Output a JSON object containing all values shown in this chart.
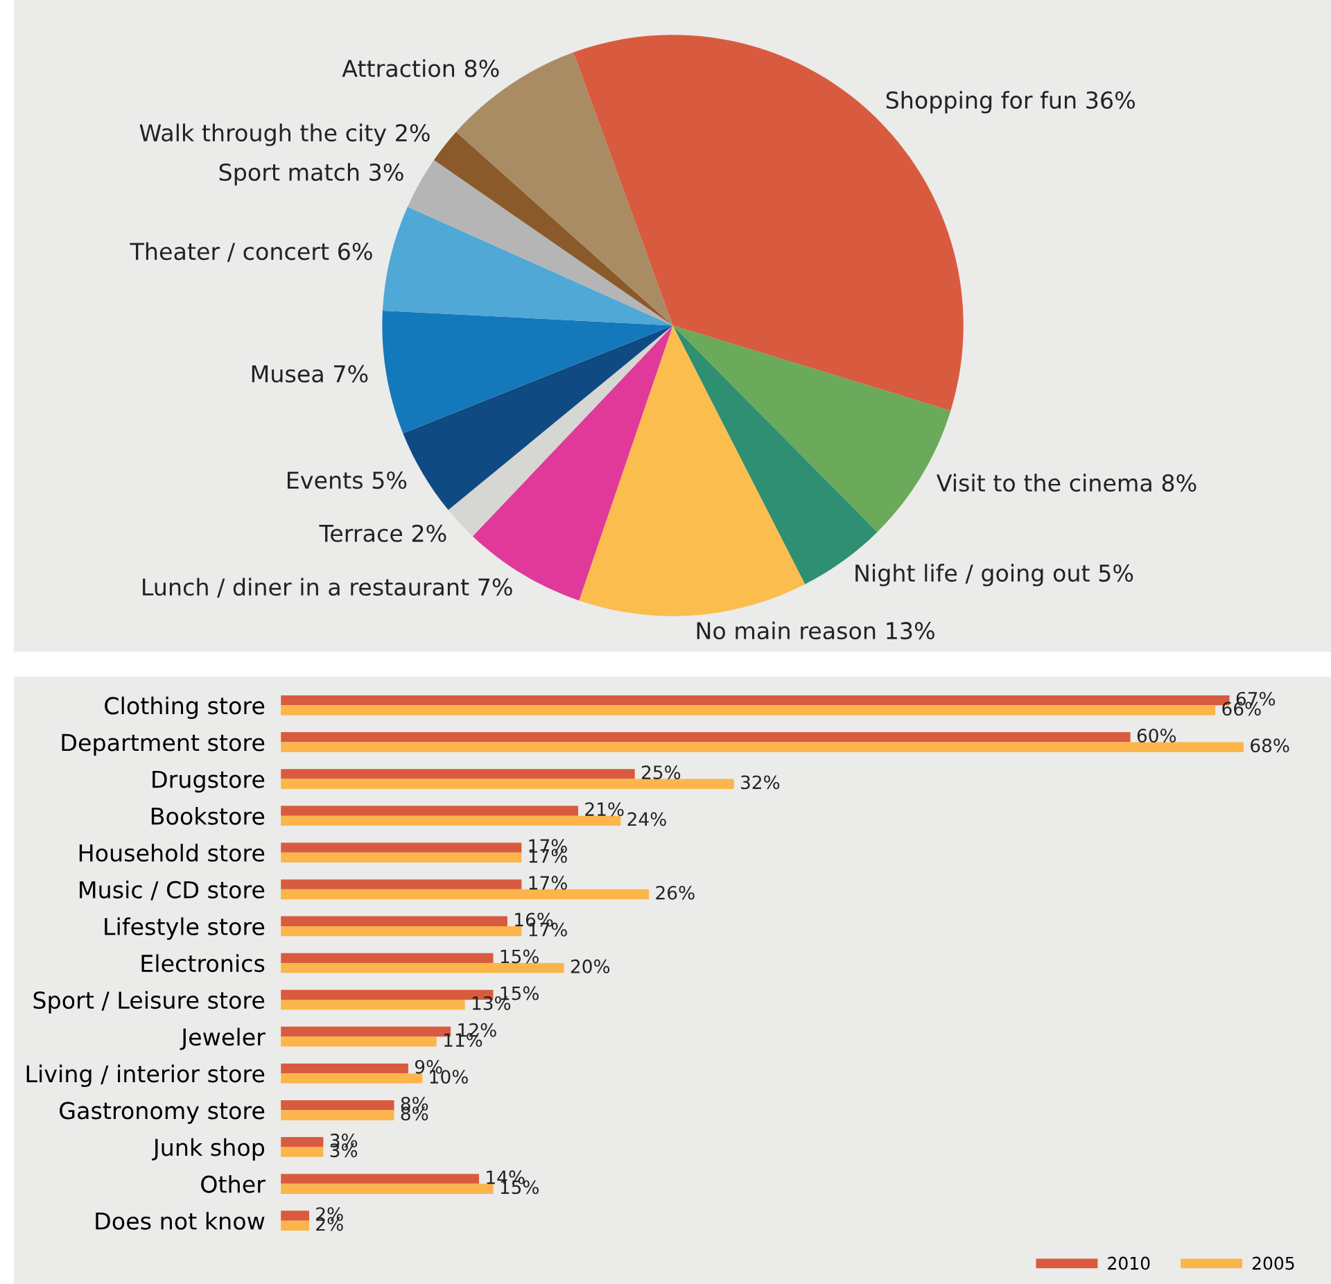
{
  "chart_data": [
    {
      "type": "pie",
      "categories": [
        "Shopping for fun 36%",
        "Visit to the cinema 8%",
        "Night life / going out 5%",
        "No main reason 13%",
        "Lunch / diner in a restaurant 7%",
        "Terrace 2%",
        "Events 5%",
        "Musea 7%",
        "Theater / concert 6%",
        "Sport match 3%",
        "Walk through the city 2%",
        "Attraction 8%"
      ],
      "values": [
        36,
        8,
        5,
        13,
        7,
        2,
        5,
        7,
        6,
        3,
        2,
        8
      ],
      "colors": [
        "#d95b3f",
        "#6aaa5a",
        "#2e8f72",
        "#fbbd4e",
        "#e0399a",
        "#d6d6d2",
        "#0f4a82",
        "#1479bb",
        "#4fa8d6",
        "#b5b5b5",
        "#8b5a2b",
        "#a98c63"
      ]
    },
    {
      "type": "bar",
      "orientation": "horizontal",
      "legend": "bottom right",
      "tick_labels": "y",
      "categories": [
        "Clothing store",
        "Department store",
        "Drugstore",
        "Bookstore",
        "Household store",
        "Music / CD store",
        "Lifestyle store",
        "Electronics",
        "Sport / Leisure store",
        "Jeweler",
        "Living / interior store",
        "Gastronomy store",
        "Junk shop",
        "Other",
        "Does not know"
      ],
      "series": [
        {
          "name": "2010",
          "color": "#d95b3f",
          "values": [
            67,
            60,
            25,
            21,
            17,
            17,
            16,
            15,
            15,
            12,
            9,
            8,
            3,
            14,
            2
          ],
          "value_labels": [
            "67%",
            "60%",
            "25%",
            "21%",
            "17%",
            "17%",
            "16%",
            "15%",
            "15%",
            "12%",
            "9%",
            "8%",
            "3%",
            "14%",
            "2%"
          ]
        },
        {
          "name": "2005",
          "color": "#fbb54a",
          "values": [
            66,
            68,
            32,
            24,
            17,
            26,
            17,
            20,
            13,
            11,
            10,
            8,
            3,
            15,
            2
          ],
          "value_labels": [
            "66%",
            "68%",
            "32%",
            "24%",
            "17%",
            "26%",
            "17%",
            "20%",
            "13%",
            "11%",
            "10%",
            "8%",
            "3%",
            "15%",
            "2%"
          ]
        }
      ]
    }
  ]
}
